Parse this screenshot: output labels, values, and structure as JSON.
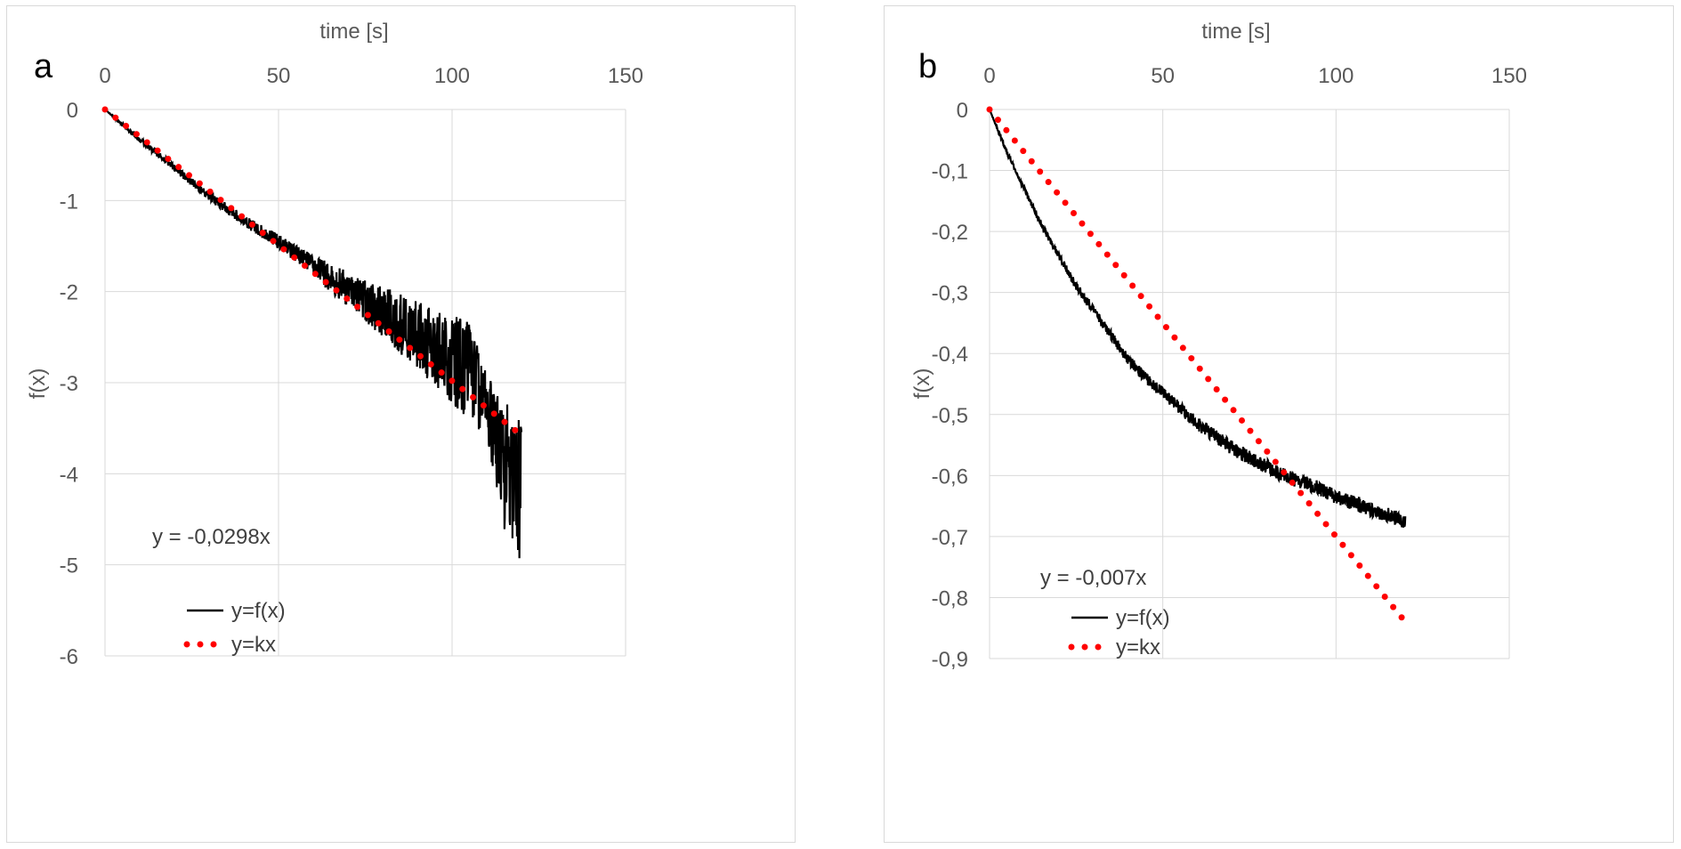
{
  "chart_data": [
    {
      "id": "a",
      "panel_label": "a",
      "type": "line",
      "title": "",
      "xlabel": "time [s]",
      "ylabel": "f(x)",
      "x_axis_position": "top",
      "xlim": [
        0,
        150
      ],
      "ylim": [
        -6,
        0
      ],
      "x_ticks": [
        0,
        50,
        100,
        150
      ],
      "y_ticks": [
        0,
        -1,
        -2,
        -3,
        -4,
        -5,
        -6
      ],
      "x_tick_labels": [
        "0",
        "50",
        "100",
        "150"
      ],
      "y_tick_labels": [
        "0",
        "-1",
        "-2",
        "-3",
        "-4",
        "-5",
        "-6"
      ],
      "grid": true,
      "equation": "y = -0,0298x",
      "series": [
        {
          "name": "y=f(x)",
          "style": "solid",
          "color": "#000000",
          "x": [
            0,
            10,
            20,
            30,
            40,
            50,
            60,
            70,
            80,
            90,
            100,
            105,
            110,
            115,
            120
          ],
          "y": [
            0,
            -0.33,
            -0.64,
            -0.95,
            -1.22,
            -1.45,
            -1.72,
            -1.97,
            -2.22,
            -2.48,
            -2.74,
            -2.88,
            -3.25,
            -3.9,
            -4.3
          ],
          "noise_amplitude": [
            0,
            0.03,
            0.04,
            0.05,
            0.06,
            0.08,
            0.12,
            0.2,
            0.28,
            0.38,
            0.48,
            0.55,
            0.35,
            0.7,
            0.9
          ]
        },
        {
          "name": "y=kx",
          "style": "dotted",
          "color": "#ff0000",
          "k": -0.0298,
          "x_range": [
            0,
            120
          ]
        }
      ]
    },
    {
      "id": "b",
      "panel_label": "b",
      "type": "line",
      "title": "",
      "xlabel": "time [s]",
      "ylabel": "f(x)",
      "x_axis_position": "top",
      "xlim": [
        0,
        150
      ],
      "ylim": [
        -0.9,
        0
      ],
      "x_ticks": [
        0,
        50,
        100,
        150
      ],
      "y_ticks": [
        0,
        -0.1,
        -0.2,
        -0.3,
        -0.4,
        -0.5,
        -0.6,
        -0.7,
        -0.8,
        -0.9
      ],
      "x_tick_labels": [
        "0",
        "50",
        "100",
        "150"
      ],
      "y_tick_labels": [
        "0",
        "-0,1",
        "-0,2",
        "-0,3",
        "-0,4",
        "-0,5",
        "-0,6",
        "-0,7",
        "-0,8",
        "-0,9"
      ],
      "grid": true,
      "equation": "y = -0,007x",
      "series": [
        {
          "name": "y=f(x)",
          "style": "solid",
          "color": "#000000",
          "x": [
            0,
            5,
            10,
            15,
            20,
            25,
            30,
            35,
            40,
            45,
            50,
            55,
            60,
            65,
            70,
            75,
            80,
            85,
            90,
            95,
            100,
            105,
            110,
            115,
            120
          ],
          "y": [
            0,
            -0.07,
            -0.13,
            -0.19,
            -0.24,
            -0.29,
            -0.33,
            -0.37,
            -0.41,
            -0.44,
            -0.465,
            -0.49,
            -0.515,
            -0.535,
            -0.555,
            -0.57,
            -0.585,
            -0.6,
            -0.61,
            -0.62,
            -0.635,
            -0.645,
            -0.655,
            -0.665,
            -0.675
          ],
          "noise_amplitude": [
            0,
            0.004,
            0.005,
            0.006,
            0.006,
            0.007,
            0.008,
            0.008,
            0.009,
            0.009,
            0.01,
            0.01,
            0.011,
            0.011,
            0.012,
            0.012,
            0.012,
            0.012,
            0.012,
            0.012,
            0.012,
            0.012,
            0.012,
            0.012,
            0.012
          ]
        },
        {
          "name": "y=kx",
          "style": "dotted",
          "color": "#ff0000",
          "k": -0.007,
          "x_range": [
            0,
            120
          ]
        }
      ]
    }
  ]
}
